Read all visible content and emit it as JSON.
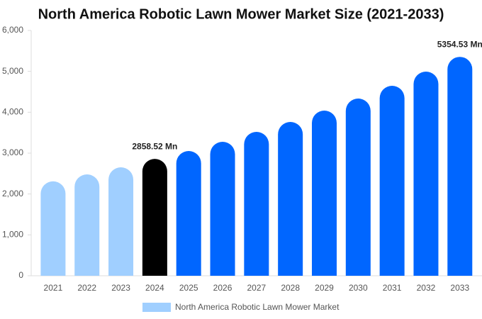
{
  "chart_data": {
    "type": "bar",
    "title": "North America Robotic Lawn Mower Market Size (2021-2033)",
    "categories": [
      "2021",
      "2022",
      "2023",
      "2024",
      "2025",
      "2026",
      "2027",
      "2028",
      "2029",
      "2030",
      "2031",
      "2032",
      "2033"
    ],
    "series": [
      {
        "name": "North America Robotic Lawn Mower Market",
        "color": "#a0cfff",
        "values": [
          2310,
          2480,
          2653,
          2858.52,
          3052,
          3277,
          3520,
          3763,
          4040,
          4335,
          4647,
          4994,
          5354.53
        ],
        "value_labels": [
          null,
          null,
          null,
          "2858.52 Mn",
          null,
          null,
          null,
          null,
          null,
          null,
          null,
          null,
          "5354.53 Mn"
        ],
        "colors": [
          "#a0cfff",
          "#a0cfff",
          "#a0cfff",
          "#000000",
          "#0066ff",
          "#0066ff",
          "#0066ff",
          "#0066ff",
          "#0066ff",
          "#0066ff",
          "#0066ff",
          "#0066ff",
          "#0066ff"
        ]
      }
    ],
    "ylim": [
      0,
      6000
    ],
    "yticks": [
      0,
      {
        "value": 1000,
        "label": "1,000"
      },
      {
        "value": 2000,
        "label": "2,000"
      },
      {
        "value": 3000,
        "label": "3,000"
      },
      {
        "value": 4000,
        "label": "4,000"
      },
      {
        "value": 5000,
        "label": "5,000"
      },
      {
        "value": 6000,
        "label": "6,000"
      }
    ],
    "grid": false,
    "legend": "bottom"
  }
}
